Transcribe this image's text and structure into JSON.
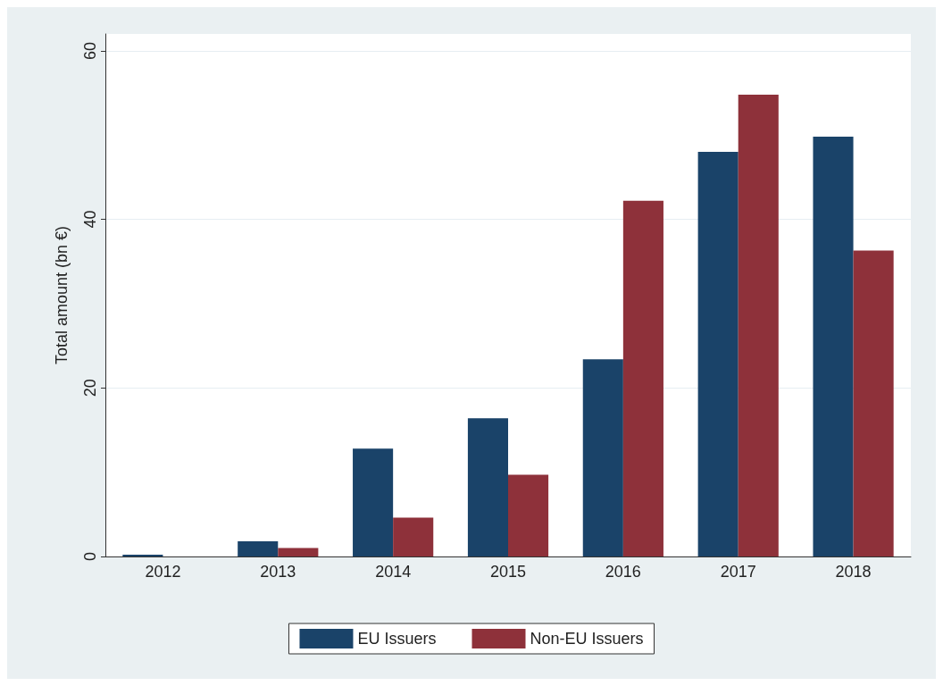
{
  "chart_data": {
    "type": "bar",
    "ylabel": "Total amount (bn €)",
    "categories": [
      "2012",
      "2013",
      "2014",
      "2015",
      "2016",
      "2017",
      "2018"
    ],
    "series": [
      {
        "name": "EU Issuers",
        "color": "#1a4369",
        "values": [
          0.2,
          1.8,
          12.8,
          16.4,
          23.4,
          48.0,
          49.8
        ]
      },
      {
        "name": "Non-EU Issuers",
        "color": "#8e313a",
        "values": [
          0,
          1.0,
          4.6,
          9.7,
          42.2,
          54.8,
          36.3
        ]
      }
    ],
    "ylim": [
      0,
      62
    ],
    "yticks": [
      0,
      20,
      40,
      60
    ],
    "grid": "y",
    "legend": "bottom"
  }
}
